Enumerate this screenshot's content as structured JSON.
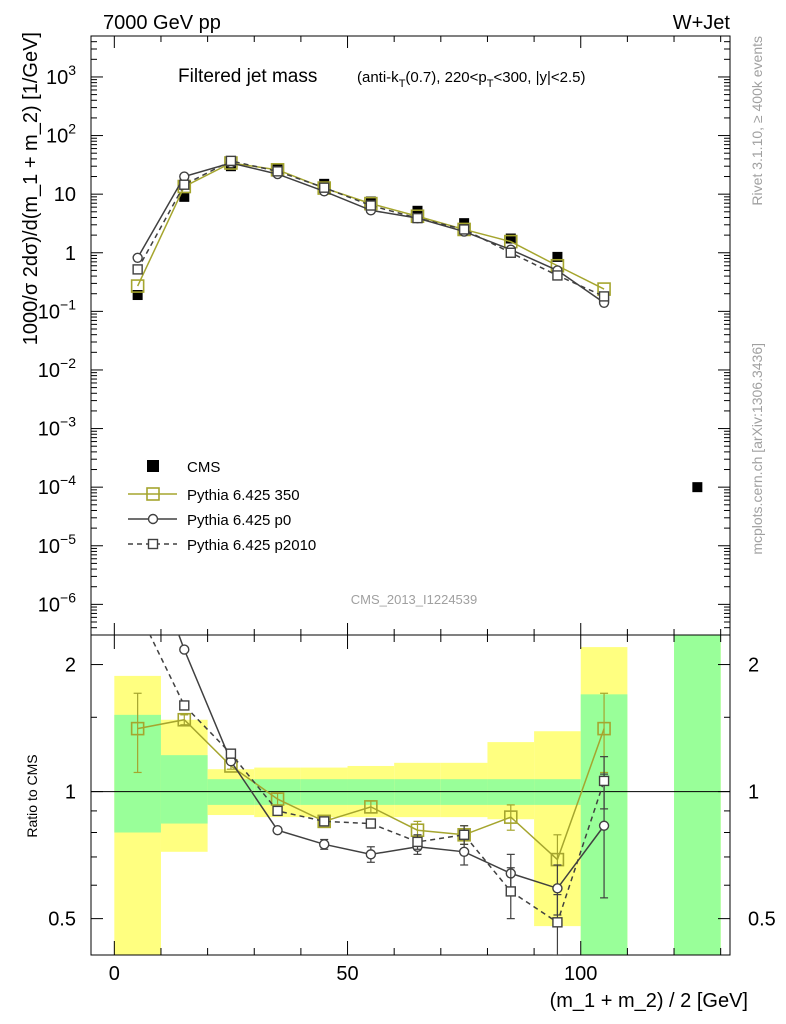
{
  "header": {
    "left": "7000 GeV pp",
    "right": "W+Jet"
  },
  "side_labels": {
    "rivet": "Rivet 3.1.10, ≥ 400k events",
    "mcplots": "mcplots.cern.ch [arXiv:1306.3436]"
  },
  "analysis_id": "CMS_2013_I1224539",
  "chart_data": [
    {
      "type": "line",
      "panel": "main",
      "title": "Filtered jet mass",
      "subtitle_parts": [
        "(anti-k",
        "T",
        "(0.7), 220<p",
        "T",
        "<300, |y|<2.5)"
      ],
      "ylabel": "1000/σ 2dσ)/d(m_1 + m_2) [1/GeV]",
      "xlabel": "(m_1 + m_2) / 2 [GeV]",
      "xlim": [
        -5,
        132
      ],
      "ylim": [
        3e-07,
        5000
      ],
      "yscale": "log",
      "y_ticks": [
        {
          "v": 1e-06,
          "b": "10",
          "e": "−6"
        },
        {
          "v": 1e-05,
          "b": "10",
          "e": "−5"
        },
        {
          "v": 0.0001,
          "b": "10",
          "e": "−4"
        },
        {
          "v": 0.001,
          "b": "10",
          "e": "−3"
        },
        {
          "v": 0.01,
          "b": "10",
          "e": "−2"
        },
        {
          "v": 0.1,
          "b": "10",
          "e": "−1"
        },
        {
          "v": 1,
          "b": "1",
          "e": ""
        },
        {
          "v": 10,
          "b": "10",
          "e": ""
        },
        {
          "v": 100,
          "b": "10",
          "e": "2"
        },
        {
          "v": 1000,
          "b": "10",
          "e": "3"
        }
      ],
      "x_ticks": [
        0,
        50,
        100
      ],
      "legend_position": "left-middle",
      "series": [
        {
          "name": "CMS",
          "style": "data",
          "color": "#000000",
          "x": [
            5,
            15,
            25,
            35,
            45,
            55,
            65,
            75,
            85,
            95,
            105,
            125
          ],
          "y": [
            0.19,
            9.0,
            30,
            27,
            15,
            7.5,
            5.2,
            3.2,
            1.75,
            0.85,
            0.17,
            0.0001
          ]
        },
        {
          "name": "Pythia 6.425 350",
          "style": "solid",
          "marker": "square-open-large",
          "color": "#a5a52e",
          "x": [
            5,
            15,
            25,
            35,
            45,
            55,
            65,
            75,
            85,
            95,
            105
          ],
          "y": [
            0.27,
            13.5,
            34,
            26,
            12.7,
            6.9,
            4.2,
            2.5,
            1.55,
            0.6,
            0.24
          ]
        },
        {
          "name": "Pythia 6.425 p0",
          "style": "solid",
          "marker": "circle-open",
          "color": "#404040",
          "x": [
            5,
            15,
            25,
            35,
            45,
            55,
            65,
            75,
            85,
            95,
            105
          ],
          "y": [
            0.82,
            20,
            34,
            22,
            11.2,
            5.3,
            3.9,
            2.3,
            1.13,
            0.5,
            0.14
          ]
        },
        {
          "name": "Pythia 6.425 p2010",
          "style": "dashed",
          "marker": "square-open-small",
          "color": "#404040",
          "x": [
            5,
            15,
            25,
            35,
            45,
            55,
            65,
            75,
            85,
            95,
            105
          ],
          "y": [
            0.52,
            14.5,
            37,
            24.5,
            12.9,
            6.4,
            3.9,
            2.5,
            1.0,
            0.41,
            0.18
          ]
        }
      ]
    },
    {
      "type": "line",
      "panel": "ratio",
      "ylabel": "Ratio to CMS",
      "xlabel": "(m_1 + m_2) / 2 [GeV]",
      "xlim": [
        -5,
        132
      ],
      "ylim": [
        0.41,
        2.35
      ],
      "yscale": "log",
      "y_ticks": [
        0.5,
        1,
        2
      ],
      "x_ticks": [
        0,
        50,
        100
      ],
      "bands": [
        {
          "x0": 0,
          "x1": 10,
          "green": [
            0.8,
            1.52
          ],
          "yellow": [
            0.3,
            1.88
          ]
        },
        {
          "x0": 10,
          "x1": 20,
          "green": [
            0.84,
            1.22
          ],
          "yellow": [
            0.72,
            1.48
          ]
        },
        {
          "x0": 20,
          "x1": 30,
          "green": [
            0.93,
            1.07
          ],
          "yellow": [
            0.88,
            1.13
          ]
        },
        {
          "x0": 30,
          "x1": 40,
          "green": [
            0.93,
            1.07
          ],
          "yellow": [
            0.87,
            1.14
          ]
        },
        {
          "x0": 40,
          "x1": 50,
          "green": [
            0.93,
            1.07
          ],
          "yellow": [
            0.87,
            1.14
          ]
        },
        {
          "x0": 50,
          "x1": 60,
          "green": [
            0.93,
            1.07
          ],
          "yellow": [
            0.87,
            1.15
          ]
        },
        {
          "x0": 60,
          "x1": 70,
          "green": [
            0.93,
            1.07
          ],
          "yellow": [
            0.87,
            1.17
          ]
        },
        {
          "x0": 70,
          "x1": 80,
          "green": [
            0.93,
            1.07
          ],
          "yellow": [
            0.87,
            1.17
          ]
        },
        {
          "x0": 80,
          "x1": 90,
          "green": [
            0.93,
            1.07
          ],
          "yellow": [
            0.86,
            1.31
          ]
        },
        {
          "x0": 90,
          "x1": 100,
          "green": [
            0.93,
            1.07
          ],
          "yellow": [
            0.48,
            1.39
          ]
        },
        {
          "x0": 100,
          "x1": 110,
          "green": [
            0.3,
            1.7
          ],
          "yellow": [
            0.3,
            2.2
          ]
        },
        {
          "x0": 120,
          "x1": 130,
          "green": [
            0.3,
            3.0
          ],
          "yellow": [
            0.3,
            3.0
          ]
        }
      ],
      "series": [
        {
          "name": "Pythia 6.425 350",
          "style": "solid",
          "marker": "square-open-large",
          "color": "#a5a52e",
          "x": [
            5,
            15,
            25,
            35,
            45,
            55,
            65,
            75,
            85,
            95,
            105
          ],
          "y": [
            1.41,
            1.48,
            1.15,
            0.96,
            0.85,
            0.92,
            0.81,
            0.79,
            0.87,
            0.69,
            1.41
          ],
          "err": [
            0.3,
            0.04,
            0.02,
            0.03,
            0.02,
            0.03,
            0.04,
            0.04,
            0.06,
            0.1,
            0.3
          ]
        },
        {
          "name": "Pythia 6.425 p0",
          "style": "solid",
          "marker": "circle-open",
          "color": "#404040",
          "x": [
            5,
            15,
            25,
            35,
            45,
            55,
            65,
            75,
            85,
            95,
            105
          ],
          "y": [
            4.3,
            2.17,
            1.18,
            0.81,
            0.75,
            0.71,
            0.74,
            0.72,
            0.64,
            0.59,
            0.83
          ],
          "err": [
            0,
            0,
            0.01,
            0.01,
            0.02,
            0.03,
            0.03,
            0.05,
            0.07,
            0.08,
            0.27
          ]
        },
        {
          "name": "Pythia 6.425 p2010",
          "style": "dashed",
          "marker": "square-open-small",
          "color": "#404040",
          "x": [
            5,
            15,
            25,
            35,
            45,
            55,
            65,
            75,
            85,
            95,
            105
          ],
          "y": [
            2.7,
            1.6,
            1.23,
            0.9,
            0.85,
            0.84,
            0.76,
            0.79,
            0.58,
            0.49,
            1.06
          ],
          "err": [
            0,
            0.03,
            0.02,
            0.01,
            0.02,
            0.02,
            0.03,
            0.04,
            0.08,
            0.08,
            0.15
          ]
        }
      ]
    }
  ]
}
